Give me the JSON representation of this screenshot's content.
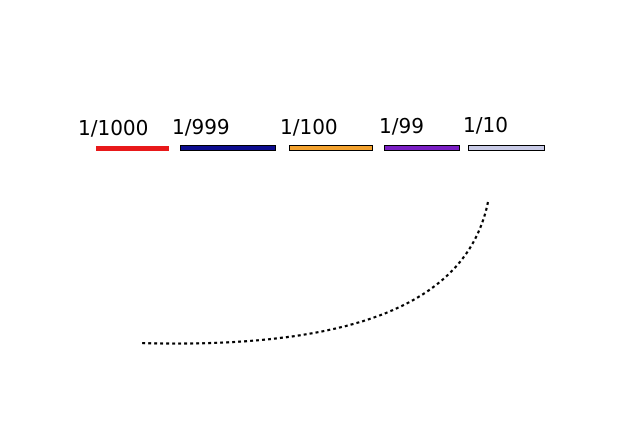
{
  "fractions": [
    {
      "label": "1/1000",
      "color": "#e8191a",
      "outlined": false
    },
    {
      "label": "1/999",
      "color": "#0d0d8f",
      "outlined": true
    },
    {
      "label": "1/100",
      "color": "#f2a12e",
      "outlined": true
    },
    {
      "label": "1/99",
      "color": "#7a1fc4",
      "outlined": true
    },
    {
      "label": "1/10",
      "color": "#c8cae6",
      "outlined": true
    }
  ],
  "connector": {
    "style": "dotted",
    "color": "#000000"
  }
}
